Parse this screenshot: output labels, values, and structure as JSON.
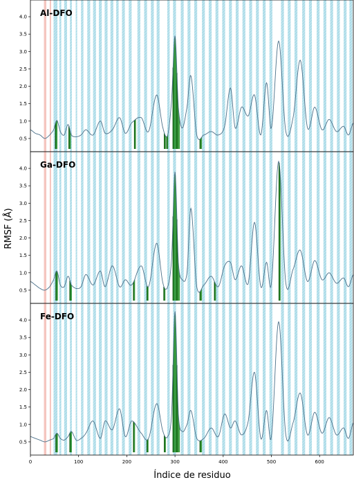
{
  "chart_data": {
    "type": "line",
    "xlabel": "Índice de residuo",
    "ylabel": "RMSF (Å)",
    "xlim": [
      0,
      670
    ],
    "ylim": [
      0.2,
      4.4
    ],
    "x_ticks": [
      0,
      100,
      200,
      300,
      400,
      500,
      600
    ],
    "y_ticks": [
      0.5,
      1.0,
      1.5,
      2.0,
      2.5,
      3.0,
      3.5,
      4.0
    ],
    "y_tick_labels": [
      "0.5",
      "1.0",
      "1.5",
      "2.0",
      "2.5",
      "3.0",
      "3.5",
      "4.0"
    ],
    "grid": false,
    "colors": {
      "line": "#4a6f88",
      "band": "#a8dbe8",
      "band_hatch": "#7fc7d9",
      "red_band": "#f2b8b0",
      "green": "#1f8a1f",
      "green_dark": "#0b5d0b"
    },
    "highlight_regions": {
      "red": [
        [
          28,
          33
        ],
        [
          40,
          43
        ]
      ],
      "cyan": [
        [
          48,
          56
        ],
        [
          60,
          64
        ],
        [
          70,
          76
        ],
        [
          82,
          86
        ],
        [
          94,
          97
        ],
        [
          105,
          110
        ],
        [
          118,
          124
        ],
        [
          130,
          136
        ],
        [
          142,
          148
        ],
        [
          154,
          160
        ],
        [
          166,
          172
        ],
        [
          178,
          183
        ],
        [
          190,
          196
        ],
        [
          204,
          210
        ],
        [
          222,
          228
        ],
        [
          236,
          242
        ],
        [
          250,
          256
        ],
        [
          262,
          268
        ],
        [
          284,
          289
        ],
        [
          296,
          302
        ],
        [
          312,
          318
        ],
        [
          326,
          332
        ],
        [
          340,
          346
        ],
        [
          356,
          362
        ],
        [
          370,
          376
        ],
        [
          384,
          390
        ],
        [
          398,
          404
        ],
        [
          412,
          418
        ],
        [
          426,
          432
        ],
        [
          440,
          446
        ],
        [
          454,
          460
        ],
        [
          468,
          474
        ],
        [
          482,
          488
        ],
        [
          496,
          502
        ],
        [
          520,
          526
        ],
        [
          534,
          540
        ],
        [
          548,
          554
        ],
        [
          564,
          570
        ],
        [
          578,
          584
        ],
        [
          594,
          600
        ],
        [
          608,
          614
        ],
        [
          622,
          628
        ],
        [
          636,
          642
        ],
        [
          650,
          656
        ],
        [
          662,
          668
        ]
      ]
    },
    "panels": [
      {
        "title": "Al-DFO",
        "x": [
          0,
          10,
          20,
          30,
          40,
          48,
          55,
          62,
          70,
          78,
          85,
          95,
          105,
          115,
          130,
          145,
          155,
          170,
          185,
          197,
          210,
          230,
          245,
          262,
          275,
          285,
          293,
          300,
          307,
          315,
          325,
          333,
          345,
          360,
          375,
          390,
          403,
          415,
          425,
          438,
          452,
          465,
          478,
          490,
          500,
          515,
          530,
          545,
          560,
          575,
          590,
          605,
          620,
          635,
          650,
          660,
          670
        ],
        "y": [
          0.75,
          0.65,
          0.6,
          0.5,
          0.6,
          0.75,
          1.02,
          0.7,
          0.6,
          0.9,
          0.6,
          0.55,
          0.6,
          0.75,
          0.6,
          1.0,
          0.65,
          0.75,
          1.1,
          0.65,
          0.95,
          1.1,
          0.7,
          1.75,
          0.8,
          0.6,
          1.6,
          3.45,
          1.4,
          0.8,
          1.4,
          2.3,
          0.6,
          0.6,
          0.7,
          0.6,
          0.85,
          1.95,
          0.8,
          1.4,
          1.15,
          1.75,
          0.6,
          2.1,
          0.8,
          3.3,
          0.7,
          1.1,
          2.75,
          0.8,
          1.4,
          0.75,
          1.05,
          0.7,
          0.85,
          0.6,
          0.95
        ],
        "green_x": [
          [
            52,
            56
          ],
          [
            80,
            84
          ],
          [
            216,
            219
          ],
          [
            278,
            281
          ],
          [
            283,
            286
          ],
          [
            296,
            304
          ],
          [
            304,
            310
          ],
          [
            352,
            356
          ]
        ]
      },
      {
        "title": "Ga-DFO",
        "x": [
          0,
          10,
          20,
          30,
          40,
          48,
          55,
          62,
          70,
          78,
          85,
          95,
          105,
          115,
          130,
          145,
          155,
          170,
          185,
          197,
          210,
          230,
          245,
          262,
          275,
          285,
          293,
          300,
          307,
          315,
          325,
          333,
          345,
          360,
          375,
          390,
          403,
          415,
          425,
          438,
          452,
          465,
          478,
          490,
          500,
          515,
          530,
          545,
          560,
          575,
          590,
          605,
          620,
          635,
          650,
          660,
          670
        ],
        "y": [
          0.75,
          0.65,
          0.55,
          0.5,
          0.6,
          0.8,
          1.05,
          0.65,
          0.6,
          0.9,
          0.65,
          0.55,
          0.6,
          0.95,
          0.65,
          1.05,
          0.6,
          1.2,
          0.6,
          0.8,
          0.65,
          1.2,
          0.6,
          1.85,
          0.7,
          0.6,
          1.4,
          3.9,
          1.3,
          0.8,
          1.0,
          2.85,
          0.6,
          0.65,
          0.9,
          0.6,
          1.2,
          1.3,
          0.8,
          1.2,
          0.7,
          2.45,
          0.6,
          1.3,
          0.7,
          4.2,
          0.7,
          1.1,
          1.65,
          0.75,
          1.35,
          0.8,
          1.0,
          0.7,
          0.85,
          0.6,
          0.95
        ],
        "green_x": [
          [
            53,
            57
          ],
          [
            82,
            86
          ],
          [
            214,
            217
          ],
          [
            242,
            245
          ],
          [
            277,
            280
          ],
          [
            296,
            304
          ],
          [
            304,
            310
          ],
          [
            352,
            356
          ],
          [
            382,
            385
          ],
          [
            516,
            519
          ]
        ]
      },
      {
        "title": "Fe-DFO",
        "x": [
          0,
          10,
          20,
          30,
          40,
          48,
          55,
          62,
          70,
          78,
          85,
          95,
          105,
          115,
          130,
          145,
          155,
          170,
          185,
          197,
          210,
          230,
          245,
          262,
          275,
          285,
          293,
          300,
          307,
          315,
          325,
          333,
          345,
          360,
          375,
          390,
          403,
          415,
          425,
          438,
          452,
          465,
          478,
          490,
          500,
          515,
          530,
          545,
          560,
          575,
          590,
          605,
          620,
          635,
          650,
          660,
          670
        ],
        "y": [
          0.65,
          0.6,
          0.55,
          0.5,
          0.55,
          0.6,
          0.75,
          0.6,
          0.55,
          0.65,
          0.8,
          0.55,
          0.6,
          0.75,
          1.1,
          0.6,
          1.1,
          0.85,
          1.45,
          0.65,
          1.1,
          0.75,
          0.6,
          1.6,
          0.8,
          0.65,
          1.3,
          4.25,
          1.3,
          0.8,
          1.0,
          1.4,
          0.6,
          0.6,
          0.9,
          0.65,
          1.3,
          0.9,
          1.1,
          0.7,
          1.1,
          2.5,
          0.6,
          1.4,
          0.65,
          3.95,
          0.7,
          1.05,
          1.9,
          0.7,
          1.35,
          0.75,
          1.2,
          0.7,
          0.9,
          0.6,
          1.05
        ],
        "green_x": [
          [
            53,
            57
          ],
          [
            82,
            86
          ],
          [
            214,
            217
          ],
          [
            242,
            245
          ],
          [
            278,
            281
          ],
          [
            296,
            304
          ],
          [
            304,
            310
          ],
          [
            352,
            356
          ]
        ]
      }
    ]
  }
}
